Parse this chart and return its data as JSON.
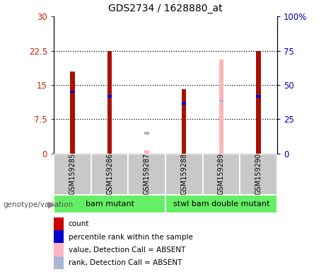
{
  "title": "GDS2734 / 1628880_at",
  "samples": [
    "GSM159285",
    "GSM159286",
    "GSM159287",
    "GSM159288",
    "GSM159289",
    "GSM159290"
  ],
  "count_values": [
    18.0,
    22.5,
    null,
    14.0,
    null,
    22.5
  ],
  "rank_values": [
    13.5,
    12.5,
    null,
    11.0,
    null,
    12.5
  ],
  "count_absent": [
    null,
    null,
    0.8,
    null,
    20.5,
    null
  ],
  "rank_absent": [
    null,
    null,
    4.5,
    null,
    11.5,
    null
  ],
  "left_ylim": [
    0,
    30
  ],
  "right_ylim": [
    0,
    100
  ],
  "left_yticks": [
    0,
    7.5,
    15,
    22.5,
    30
  ],
  "right_yticks": [
    0,
    25,
    50,
    75,
    100
  ],
  "left_ytick_labels": [
    "0",
    "7.5",
    "15",
    "22.5",
    "30"
  ],
  "right_ytick_labels": [
    "0",
    "25",
    "50",
    "75",
    "100%"
  ],
  "groups": [
    {
      "label": "bam mutant",
      "start": 0,
      "end": 3
    },
    {
      "label": "stwl bam double mutant",
      "start": 3,
      "end": 6
    }
  ],
  "genotype_label": "genotype/variation",
  "legend_items": [
    {
      "label": "count",
      "color": "#cc0000"
    },
    {
      "label": "percentile rank within the sample",
      "color": "#0000cc"
    },
    {
      "label": "value, Detection Call = ABSENT",
      "color": "#ffb6c1"
    },
    {
      "label": "rank, Detection Call = ABSENT",
      "color": "#aab8d4"
    }
  ],
  "bar_width": 0.12,
  "count_color": "#aa1100",
  "rank_color": "#0000cc",
  "absent_value_color": "#ffb6b6",
  "absent_rank_color": "#aab4cc",
  "bg_color": "#ffffff",
  "plot_bg_color": "#ffffff",
  "left_label_color": "#cc2200",
  "right_label_color": "#0000bb",
  "group_color": "#66ee66",
  "sample_box_color": "#c8c8c8"
}
